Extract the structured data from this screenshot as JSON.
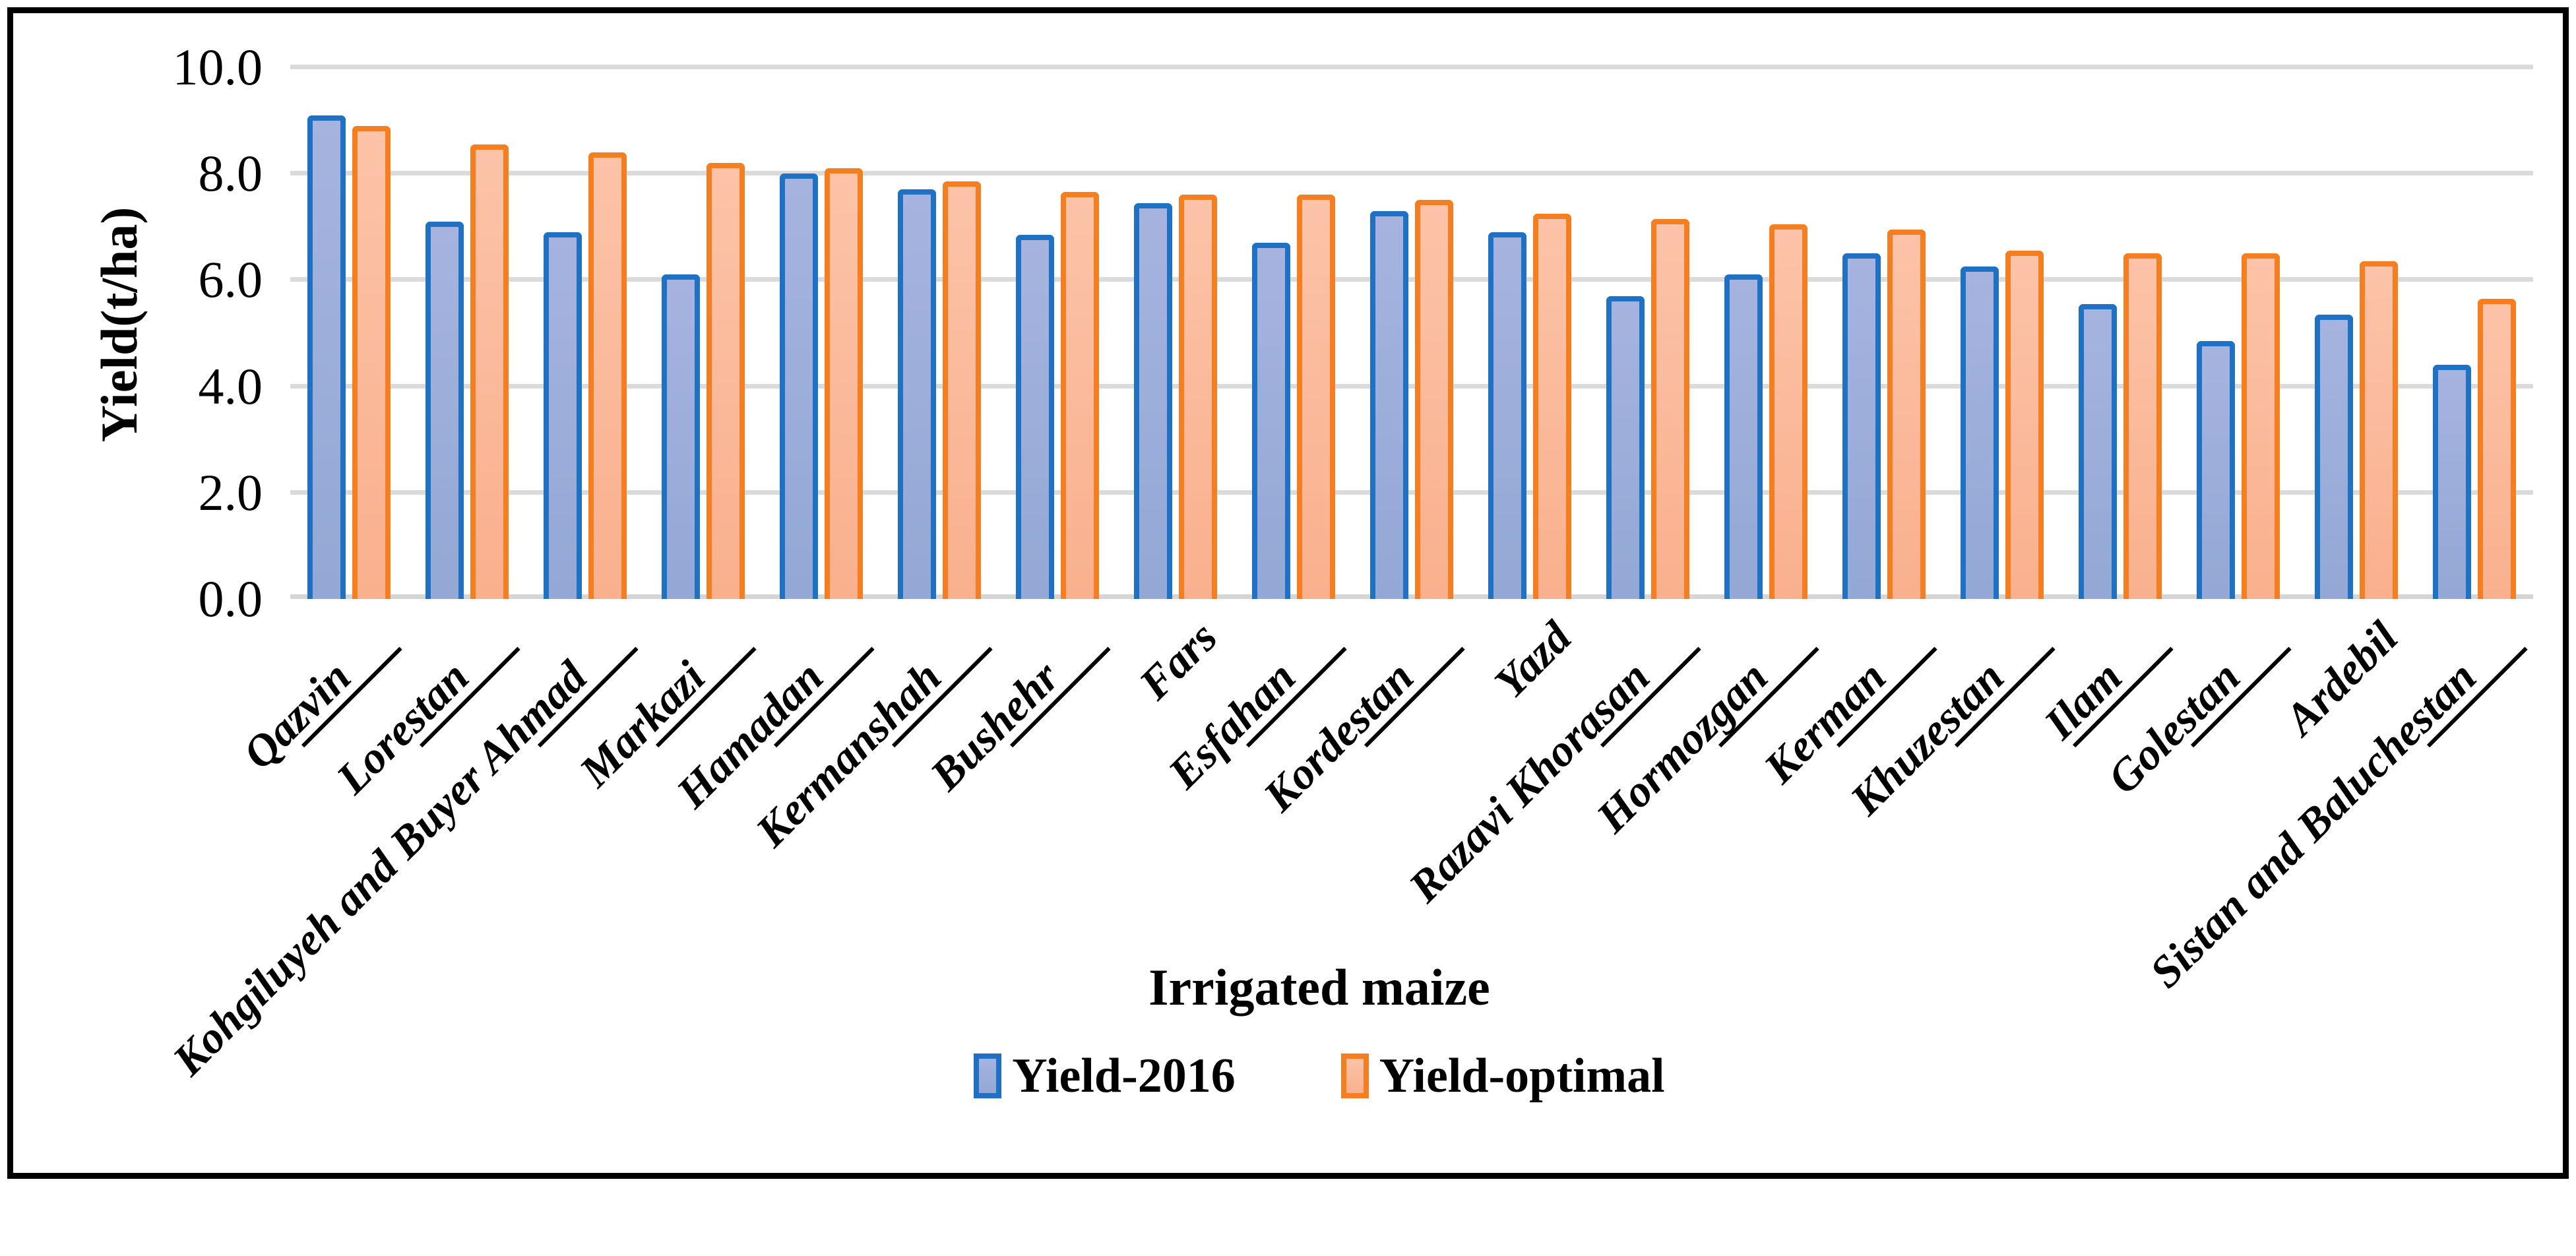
{
  "chart_data": {
    "type": "bar",
    "title": "",
    "xlabel": "Irrigated maize",
    "ylabel": "Yield(t/ha)",
    "ylim": [
      0,
      10
    ],
    "grid": true,
    "legend_position": "bottom-center",
    "yticks": [
      {
        "label": "10.0",
        "value": 10
      },
      {
        "label": "8.0",
        "value": 8
      },
      {
        "label": "6.0",
        "value": 6
      },
      {
        "label": "4.0",
        "value": 4
      },
      {
        "label": "2.0",
        "value": 2
      },
      {
        "label": "0.0",
        "value": 0
      }
    ],
    "categories": [
      {
        "label": "Qazvin",
        "underline": true
      },
      {
        "label": "Lorestan",
        "underline": true
      },
      {
        "label": "Kohgiluyeh and Buyer Ahmad",
        "underline": true
      },
      {
        "label": "Markazi",
        "underline": true
      },
      {
        "label": "Hamadan",
        "underline": true
      },
      {
        "label": "Kermanshah",
        "underline": true
      },
      {
        "label": "Bushehr",
        "underline": true
      },
      {
        "label": "Fars",
        "underline": false
      },
      {
        "label": "Esfahan",
        "underline": true
      },
      {
        "label": "Kordestan",
        "underline": true
      },
      {
        "label": "Yazd",
        "underline": false
      },
      {
        "label": "Razavi Khorasan",
        "underline": true
      },
      {
        "label": "Hormozgan",
        "underline": true
      },
      {
        "label": "Kerman",
        "underline": true
      },
      {
        "label": "Khuzestan",
        "underline": true
      },
      {
        "label": "Ilam",
        "underline": true
      },
      {
        "label": "Golestan",
        "underline": true
      },
      {
        "label": "Ardebil",
        "underline": false
      },
      {
        "label": "Sistan and Baluchestan",
        "underline": true
      }
    ],
    "series": [
      {
        "name": "Yield-2016",
        "values": [
          9.1,
          7.1,
          6.9,
          6.1,
          8.0,
          7.7,
          6.85,
          7.45,
          6.7,
          7.3,
          6.9,
          5.7,
          6.1,
          6.5,
          6.25,
          5.55,
          4.85,
          5.35,
          4.4
        ],
        "border_color": "#1E71C3",
        "fill_top": "#A6B3DF",
        "fill_bottom": "#93A8D5"
      },
      {
        "name": "Yield-optimal",
        "values": [
          8.9,
          8.55,
          8.4,
          8.2,
          8.1,
          7.85,
          7.65,
          7.6,
          7.6,
          7.5,
          7.25,
          7.15,
          7.05,
          6.95,
          6.55,
          6.5,
          6.5,
          6.35,
          5.65
        ],
        "border_color": "#F57E20",
        "fill_top": "#FCC3A8",
        "fill_bottom": "#F9B08D"
      }
    ],
    "gridline_color": "#DBDBDB",
    "axis_line_color": "#D5D5D5"
  }
}
